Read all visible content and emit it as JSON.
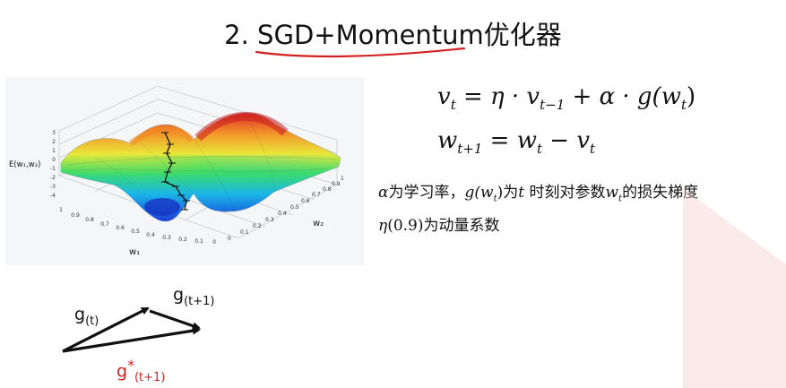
{
  "title": "2. SGD+Momentum优化器",
  "formula1": {
    "lhs": "v",
    "lhs_sub": "t",
    "rhs": "= η · v",
    "rhs_sub": "t−1",
    "rhs2": " + α · g(w",
    "rhs2_sub": "t",
    "rhs2_end": ")"
  },
  "formula2": {
    "lhs": "w",
    "lhs_sub": "t+1",
    "rhs": "= w",
    "rhs_sub": "t",
    "rhs2": " − v",
    "rhs2_sub": "t"
  },
  "description": {
    "line1": {
      "alpha": "α",
      "part1": "为学习率，",
      "g": "g(w",
      "g_sub": "t",
      "g_end": ")",
      "part2": "为",
      "t": "t",
      "part3": " 时刻对参数",
      "w": "w",
      "w_sub": "t",
      "part4": "的损失梯度"
    },
    "line2": {
      "eta": "η",
      "value": "(0.9)",
      "part": "为动量系数"
    }
  },
  "surface_plot": {
    "zlabel": "E(w₁,w₂)",
    "xlabel": "w₁",
    "ylabel": "w₂",
    "z_ticks": [
      "3",
      "2",
      "1",
      "0",
      "-1",
      "-2",
      "-3",
      "-4"
    ],
    "x_ticks": [
      "1",
      "0.9",
      "0.8",
      "0.7",
      "0.6",
      "0.5",
      "0.4",
      "0.3",
      "0.2",
      "0.1",
      "0"
    ],
    "y_ticks": [
      "0",
      "0.1",
      "0.2",
      "0.3",
      "0.4",
      "0.5",
      "0.6",
      "0.7",
      "0.8",
      "0.9",
      "1"
    ]
  },
  "vectors": {
    "g_t": "g",
    "g_t_sub": "(t)",
    "g_t1": "g",
    "g_t1_sub": "(t+1)",
    "g_star": "g",
    "g_star_sup": "*",
    "g_star_sub": "(t+1)",
    "black": "#111111",
    "red": "#d42020"
  },
  "colors": {
    "underline": "#d42020",
    "decoration": "#f7d0d0"
  }
}
